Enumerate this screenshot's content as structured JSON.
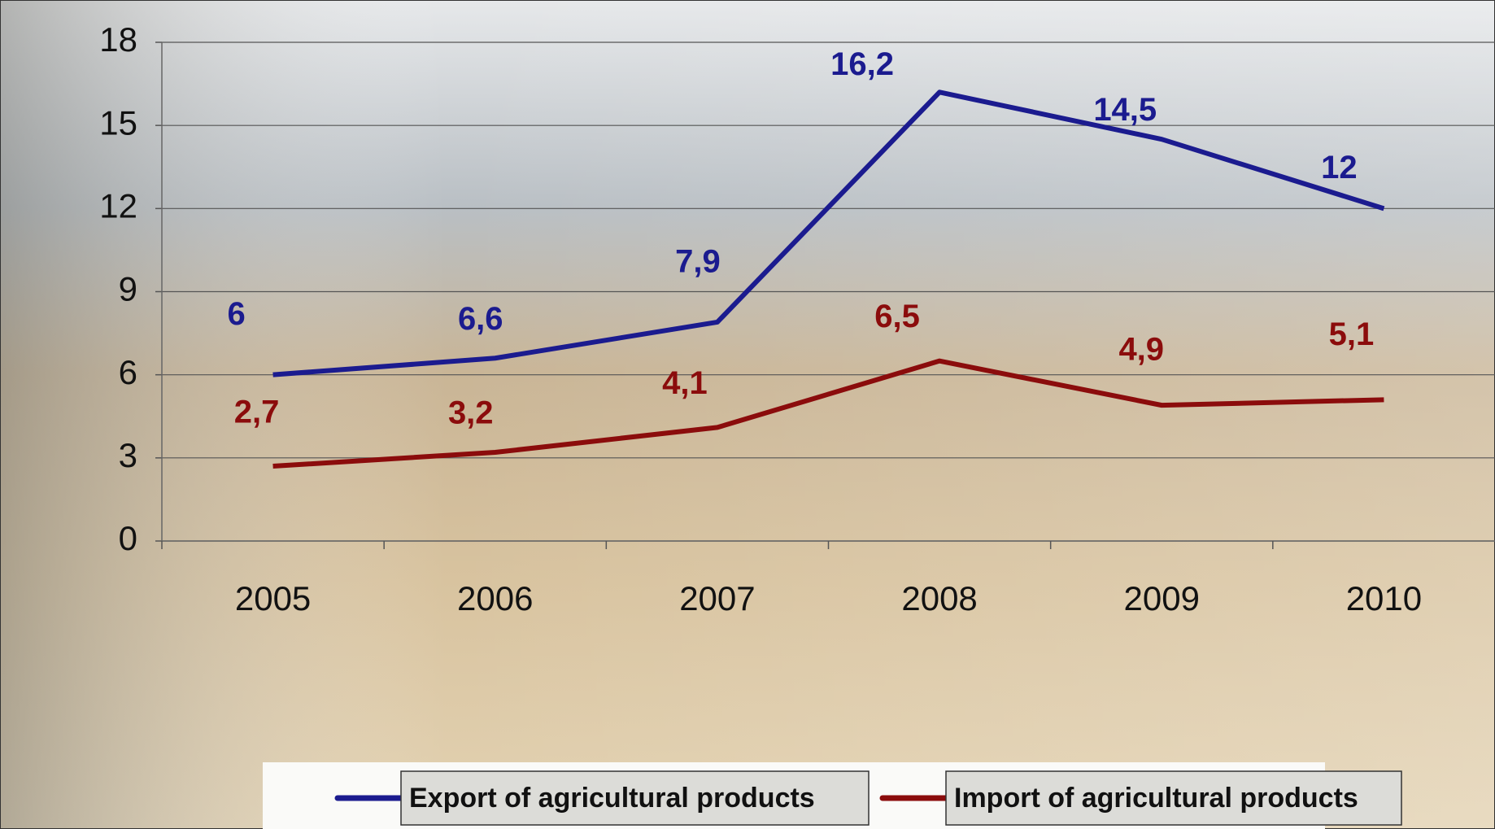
{
  "chart_data": {
    "type": "line",
    "categories": [
      "2005",
      "2006",
      "2007",
      "2008",
      "2009",
      "2010"
    ],
    "series": [
      {
        "name": "Export of agricultural products",
        "color": "#1b1b8f",
        "values": [
          6,
          6.6,
          7.9,
          16.2,
          14.5,
          12
        ],
        "value_labels": [
          "6",
          "6,6",
          "7,9",
          "16,2",
          "14,5",
          "12"
        ]
      },
      {
        "name": "Import of agricultural products",
        "color": "#8b0c0c",
        "values": [
          2.7,
          3.2,
          4.1,
          6.5,
          4.9,
          5.1
        ],
        "value_labels": [
          "2,7",
          "3,2",
          "4,1",
          "6,5",
          "4,9",
          "5,1"
        ]
      }
    ],
    "ylim": [
      0,
      18
    ],
    "yticks": [
      0,
      3,
      6,
      9,
      12,
      15,
      18
    ],
    "grid": true,
    "legend": "bottom"
  }
}
